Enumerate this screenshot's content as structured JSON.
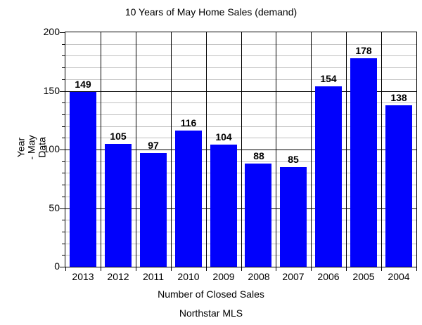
{
  "chart_data": {
    "type": "bar",
    "title": "10 Years of May Home Sales (demand)",
    "categories": [
      "2013",
      "2012",
      "2011",
      "2010",
      "2009",
      "2008",
      "2007",
      "2006",
      "2005",
      "2004"
    ],
    "values": [
      149,
      105,
      97,
      116,
      104,
      88,
      85,
      154,
      178,
      138
    ],
    "xlabel": "Number of Closed Sales",
    "ylabel_lines": [
      "Year",
      "- May",
      "Data"
    ],
    "footer": "Northstar MLS",
    "ylim": [
      0,
      200
    ],
    "y_major_step": 50,
    "y_minor_step": 10,
    "y_major_tick_labels": [
      "0",
      "50",
      "100",
      "150",
      "200"
    ],
    "grid": true,
    "legend_position": "none",
    "bar_color": "#0101fc",
    "major_grid_color": "#000000",
    "minor_grid_color": "#bfbfbf",
    "text_color": "#000000",
    "background_color": "#ffffff"
  }
}
